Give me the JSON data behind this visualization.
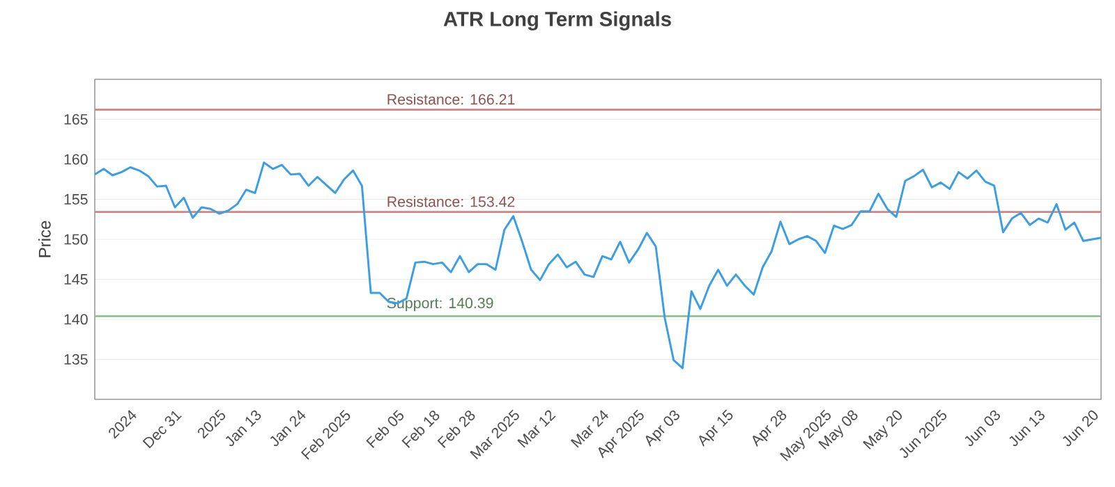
{
  "chart_data": {
    "type": "line",
    "title": "ATR Long Term Signals",
    "ylabel": "Price",
    "categories": [
      null,
      null,
      null,
      null,
      "2024",
      null,
      null,
      null,
      null,
      "Dec 31",
      null,
      null,
      null,
      null,
      "2025",
      null,
      null,
      null,
      "Jan 13",
      null,
      null,
      null,
      null,
      "Jan 24",
      null,
      null,
      null,
      null,
      "Feb 2025",
      null,
      null,
      null,
      null,
      null,
      "Feb 05",
      null,
      null,
      null,
      "Feb 18",
      null,
      null,
      null,
      "Feb 28",
      null,
      null,
      null,
      null,
      "Mar 2025",
      null,
      null,
      null,
      "Mar 12",
      null,
      null,
      null,
      null,
      null,
      "Mar 24",
      null,
      null,
      null,
      "Apr 2025",
      null,
      null,
      null,
      "Apr 03",
      null,
      null,
      null,
      null,
      null,
      "Apr 15",
      null,
      null,
      null,
      null,
      null,
      "Apr 28",
      null,
      null,
      null,
      null,
      "May 2025",
      null,
      null,
      "May 08",
      null,
      null,
      null,
      null,
      "May 20",
      null,
      null,
      null,
      null,
      "Jun 2025",
      null,
      null,
      null,
      null,
      null,
      "Jun 03",
      null,
      null,
      null,
      null,
      "Jun 13",
      null,
      null,
      null,
      null,
      null,
      "Jun 20",
      null
    ],
    "series": [
      {
        "color": "#3a9ee4",
        "values": [
          158.1,
          158.8,
          158.0,
          158.4,
          159.0,
          158.6,
          157.9,
          156.6,
          156.7,
          154.0,
          155.2,
          152.7,
          154.0,
          153.8,
          153.2,
          153.6,
          154.4,
          156.2,
          155.8,
          159.6,
          158.8,
          159.3,
          158.1,
          158.2,
          156.7,
          157.8,
          156.8,
          155.8,
          157.5,
          158.6,
          156.7,
          143.3,
          143.3,
          142.2,
          142.0,
          142.6,
          147.1,
          147.2,
          146.9,
          147.1,
          145.9,
          147.9,
          145.9,
          146.9,
          146.9,
          146.2,
          151.2,
          152.9,
          149.7,
          146.2,
          144.9,
          146.9,
          148.1,
          146.5,
          147.2,
          145.6,
          145.3,
          147.9,
          147.5,
          149.7,
          147.1,
          148.7,
          150.8,
          149.1,
          140.2,
          134.9,
          133.9,
          143.5,
          141.3,
          144.2,
          146.2,
          144.2,
          145.6,
          144.2,
          143.1,
          146.5,
          148.5,
          152.2,
          149.4,
          150.0,
          150.4,
          149.8,
          148.3,
          151.7,
          151.3,
          151.8,
          153.5,
          153.5,
          155.7,
          153.8,
          152.8,
          157.3,
          157.9,
          158.7,
          156.5,
          157.1,
          156.3,
          158.4,
          157.6,
          158.6,
          157.2,
          156.7,
          150.9,
          152.6,
          153.3,
          151.8,
          152.6,
          152.1,
          154.4,
          151.2,
          152.1,
          149.8,
          150.0,
          150.2
        ]
      }
    ],
    "ylim": [
      130,
      170
    ],
    "yticks": [
      135,
      140,
      145,
      150,
      155,
      160,
      165
    ],
    "grid": "y",
    "marker": "none",
    "line_style": "solid",
    "ref_lines": [
      {
        "axis": "y",
        "value": 166.21,
        "label": "Resistance: 166.21",
        "color": "#d98080"
      },
      {
        "axis": "y",
        "value": 153.42,
        "label": "Resistance: 153.42",
        "color": "#d98080"
      },
      {
        "axis": "y",
        "value": 140.39,
        "label": "Support: 140.39",
        "color": "#80c080"
      }
    ]
  }
}
